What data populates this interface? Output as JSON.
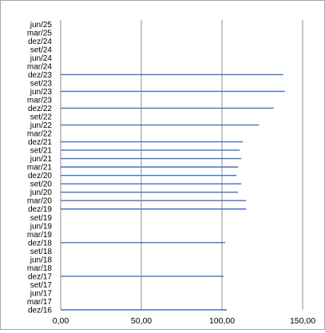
{
  "chart_data": {
    "type": "bar",
    "orientation": "horizontal",
    "title": "",
    "xlabel": "",
    "ylabel": "",
    "xlim": [
      0,
      150
    ],
    "grid": true,
    "legend": "none",
    "bar_color": "#4472c4",
    "categories": [
      "dez/16",
      "mar/17",
      "jun/17",
      "set/17",
      "dez/17",
      "mar/18",
      "jun/18",
      "set/18",
      "dez/18",
      "mar/19",
      "jun/19",
      "set/19",
      "dez/19",
      "mar/20",
      "jun/20",
      "set/20",
      "dez/20",
      "mar/21",
      "jun/21",
      "set/21",
      "dez/21",
      "mar/22",
      "jun/22",
      "set/22",
      "dez/22",
      "mar/23",
      "jun/23",
      "set/23",
      "dez/23",
      "mar/24",
      "jun/24",
      "set/24",
      "dez/24",
      "mar/25",
      "jun/25"
    ],
    "values": [
      103,
      null,
      null,
      null,
      101,
      null,
      null,
      null,
      102,
      null,
      null,
      null,
      115,
      115,
      110,
      112,
      109,
      110,
      112,
      111,
      113,
      null,
      123,
      null,
      132,
      null,
      139,
      null,
      138,
      null,
      null,
      null,
      null,
      null,
      null
    ],
    "x_ticks": [
      {
        "value": 0,
        "label": "0,00"
      },
      {
        "value": 50,
        "label": "50,00"
      },
      {
        "value": 100,
        "label": "100,00"
      },
      {
        "value": 150,
        "label": "150,00"
      }
    ]
  }
}
